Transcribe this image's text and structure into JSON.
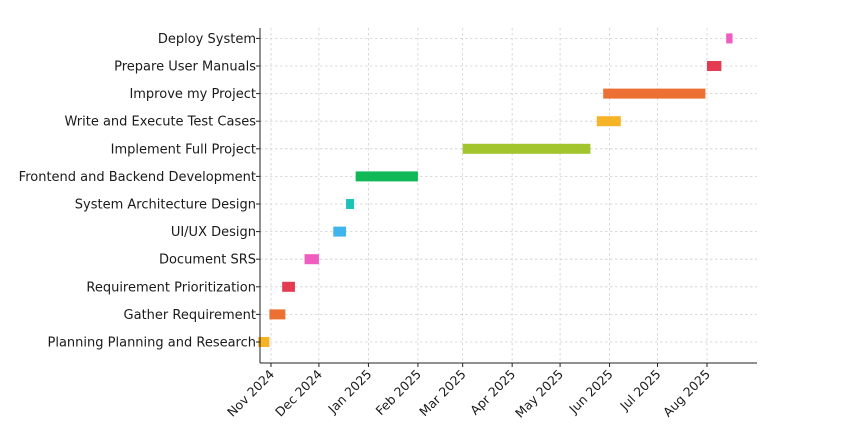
{
  "chart_data": {
    "type": "gantt",
    "title": "",
    "xlabel": "",
    "ylabel": "",
    "grid": true,
    "legend": "none",
    "x_axis": {
      "type": "date",
      "range": [
        "2024-10-24",
        "2025-08-31"
      ],
      "ticks": [
        {
          "date": "2024-11-01",
          "label": "Nov 2024"
        },
        {
          "date": "2024-12-01",
          "label": "Dec 2024"
        },
        {
          "date": "2025-01-01",
          "label": "Jan 2025"
        },
        {
          "date": "2025-02-01",
          "label": "Feb 2025"
        },
        {
          "date": "2025-03-01",
          "label": "Mar 2025"
        },
        {
          "date": "2025-04-01",
          "label": "Apr 2025"
        },
        {
          "date": "2025-05-01",
          "label": "May 2025"
        },
        {
          "date": "2025-06-01",
          "label": "Jun 2025"
        },
        {
          "date": "2025-07-01",
          "label": "Jul 2025"
        },
        {
          "date": "2025-08-01",
          "label": "Aug 2025"
        }
      ]
    },
    "tasks": [
      {
        "name": "Planning Planning and Research",
        "start": "2024-10-24",
        "end": "2024-10-31",
        "color": "#f5b325"
      },
      {
        "name": "Gather Requirement",
        "start": "2024-10-31",
        "end": "2024-11-10",
        "color": "#ec7033"
      },
      {
        "name": "Requirement Prioritization",
        "start": "2024-11-08",
        "end": "2024-11-16",
        "color": "#e23b52"
      },
      {
        "name": "Document SRS",
        "start": "2024-11-22",
        "end": "2024-12-01",
        "color": "#ee5dbf"
      },
      {
        "name": "UI/UX Design",
        "start": "2024-12-10",
        "end": "2024-12-18",
        "color": "#3fb5ee"
      },
      {
        "name": "System Architecture Design",
        "start": "2024-12-18",
        "end": "2024-12-23",
        "color": "#1bc4b7"
      },
      {
        "name": "Frontend and Backend Development",
        "start": "2024-12-24",
        "end": "2025-02-01",
        "color": "#10b857"
      },
      {
        "name": "Implement Full Project",
        "start": "2025-03-01",
        "end": "2025-05-20",
        "color": "#a2c42c"
      },
      {
        "name": "Write and Execute Test Cases",
        "start": "2025-05-24",
        "end": "2025-06-08",
        "color": "#f5b325"
      },
      {
        "name": "Improve my Project",
        "start": "2025-05-28",
        "end": "2025-07-31",
        "color": "#ec7033"
      },
      {
        "name": "Prepare User Manuals",
        "start": "2025-08-01",
        "end": "2025-08-10",
        "color": "#e23b52"
      },
      {
        "name": "Deploy System",
        "start": "2025-08-13",
        "end": "2025-08-17",
        "color": "#ee5dbf"
      }
    ]
  }
}
